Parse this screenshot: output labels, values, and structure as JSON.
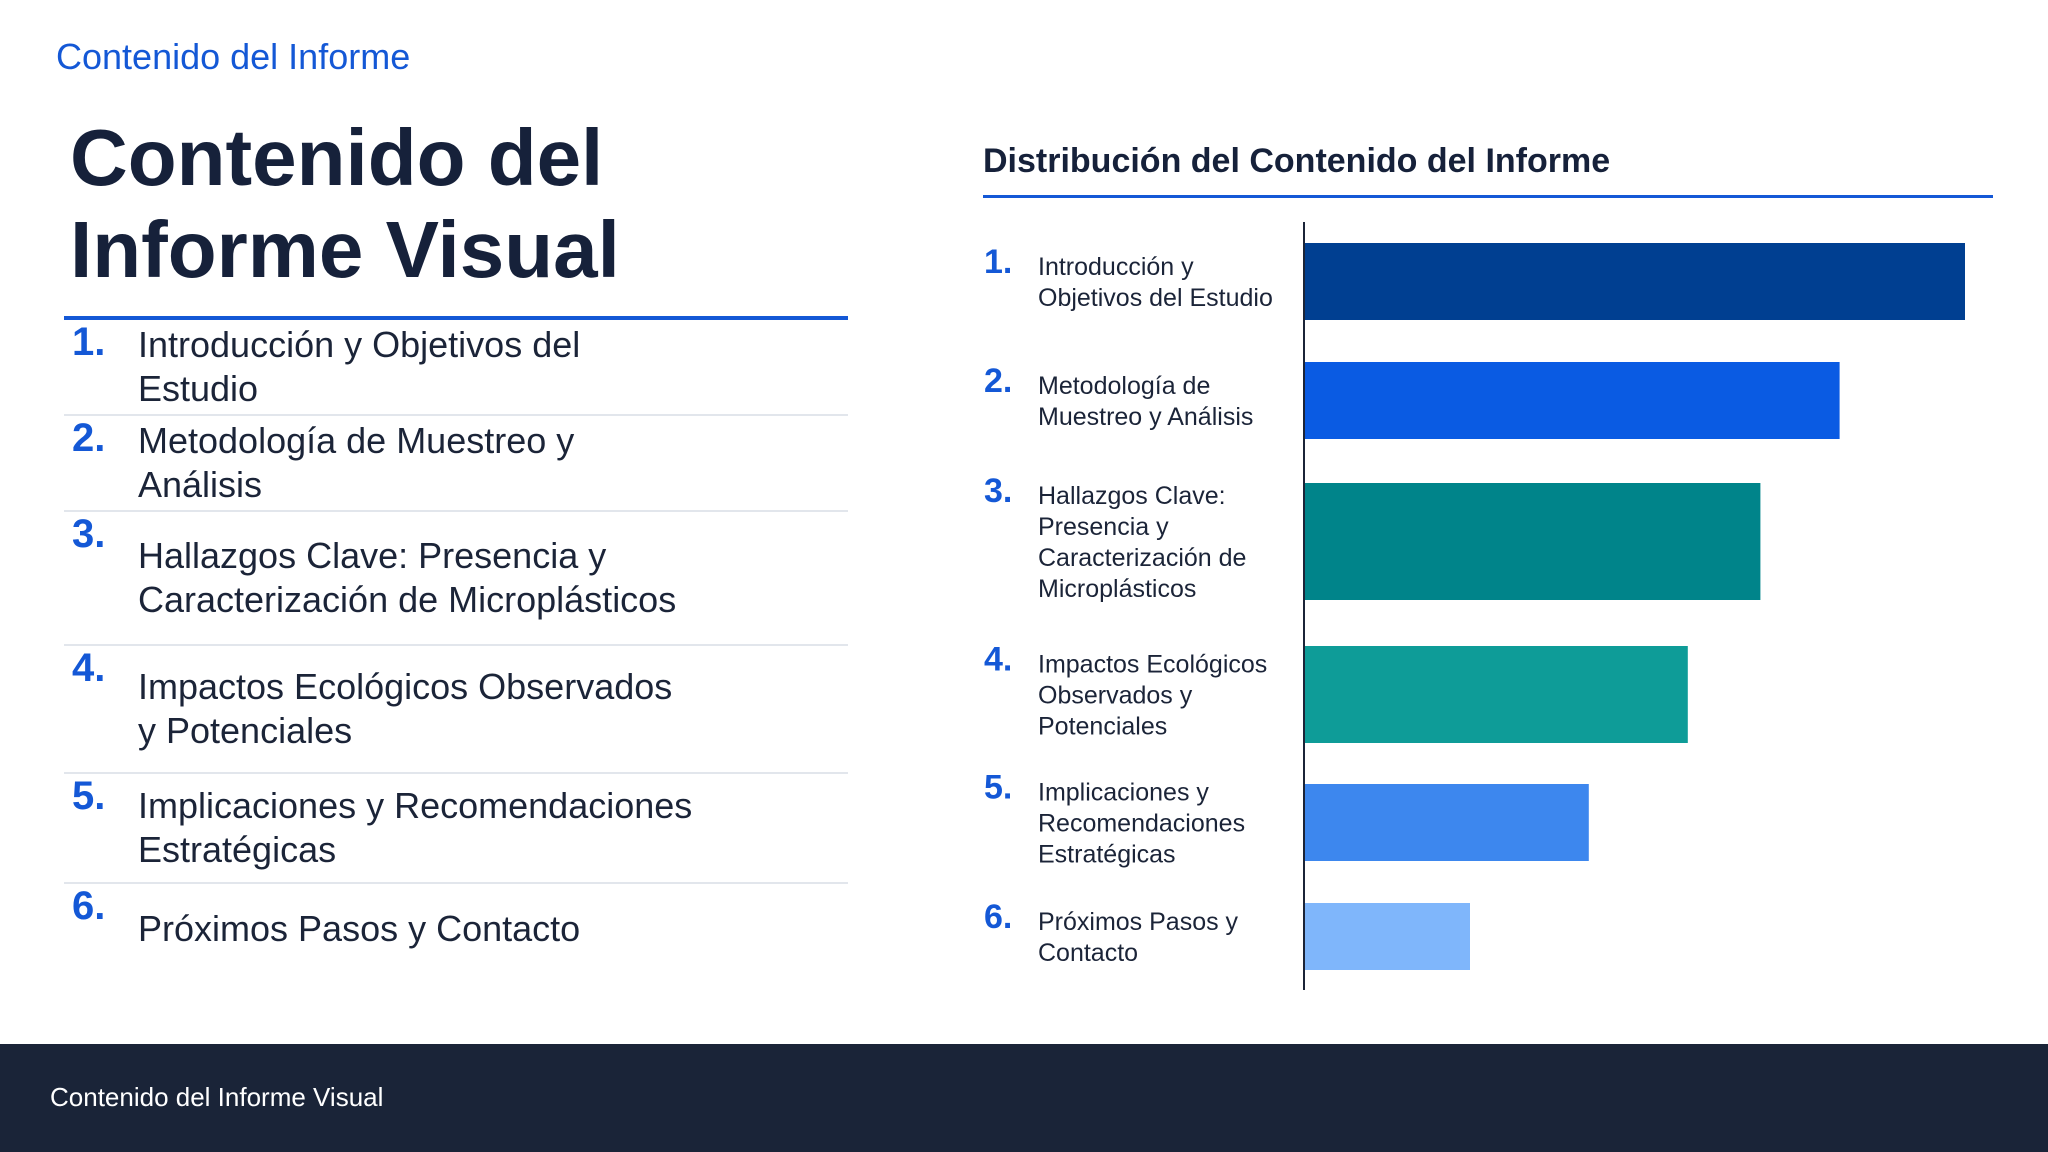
{
  "header": {
    "section_label": "Contenido del Informe",
    "title_line1": "Contenido del",
    "title_line2": "Informe Visual"
  },
  "toc": {
    "items": [
      {
        "num": "1.",
        "label": "Introducción y Objetivos del Estudio"
      },
      {
        "num": "2.",
        "label": "Metodología de Muestreo y Análisis"
      },
      {
        "num": "3.",
        "label": "Hallazgos Clave: Presencia y Caracterización de Microplásticos"
      },
      {
        "num": "4.",
        "label": "Impactos Ecológicos Observados y Potenciales"
      },
      {
        "num": "5.",
        "label": "Implicaciones y Recomendaciones Estratégicas"
      },
      {
        "num": "6.",
        "label": "Próximos Pasos y Contacto"
      }
    ]
  },
  "chart_data": {
    "type": "bar",
    "orientation": "horizontal",
    "title": "Distribución del Contenido del Informe",
    "xlabel": "",
    "ylabel": "",
    "xlim": [
      0,
      100
    ],
    "grid": false,
    "categories": [
      {
        "num": "1.",
        "lines": [
          "Introducción y",
          "Objetivos del Estudio"
        ]
      },
      {
        "num": "2.",
        "lines": [
          "Metodología de",
          "Muestreo y Análisis"
        ]
      },
      {
        "num": "3.",
        "lines": [
          "Hallazgos Clave:",
          "Presencia y",
          "Caracterización de",
          "Microplásticos"
        ]
      },
      {
        "num": "4.",
        "lines": [
          "Impactos Ecológicos",
          "Observados y",
          "Potenciales"
        ]
      },
      {
        "num": "5.",
        "lines": [
          "Implicaciones y",
          "Recomendaciones",
          "Estratégicas"
        ]
      },
      {
        "num": "6.",
        "lines": [
          "Próximos Pasos y",
          "Contacto"
        ]
      }
    ],
    "values": [
      100,
      81,
      69,
      58,
      43,
      25
    ],
    "colors": [
      "#003f91",
      "#0a5be3",
      "#00848a",
      "#0e9c98",
      "#3d87ee",
      "#7fb6fb"
    ]
  },
  "footer": {
    "text": "Contenido del Informe Visual"
  }
}
